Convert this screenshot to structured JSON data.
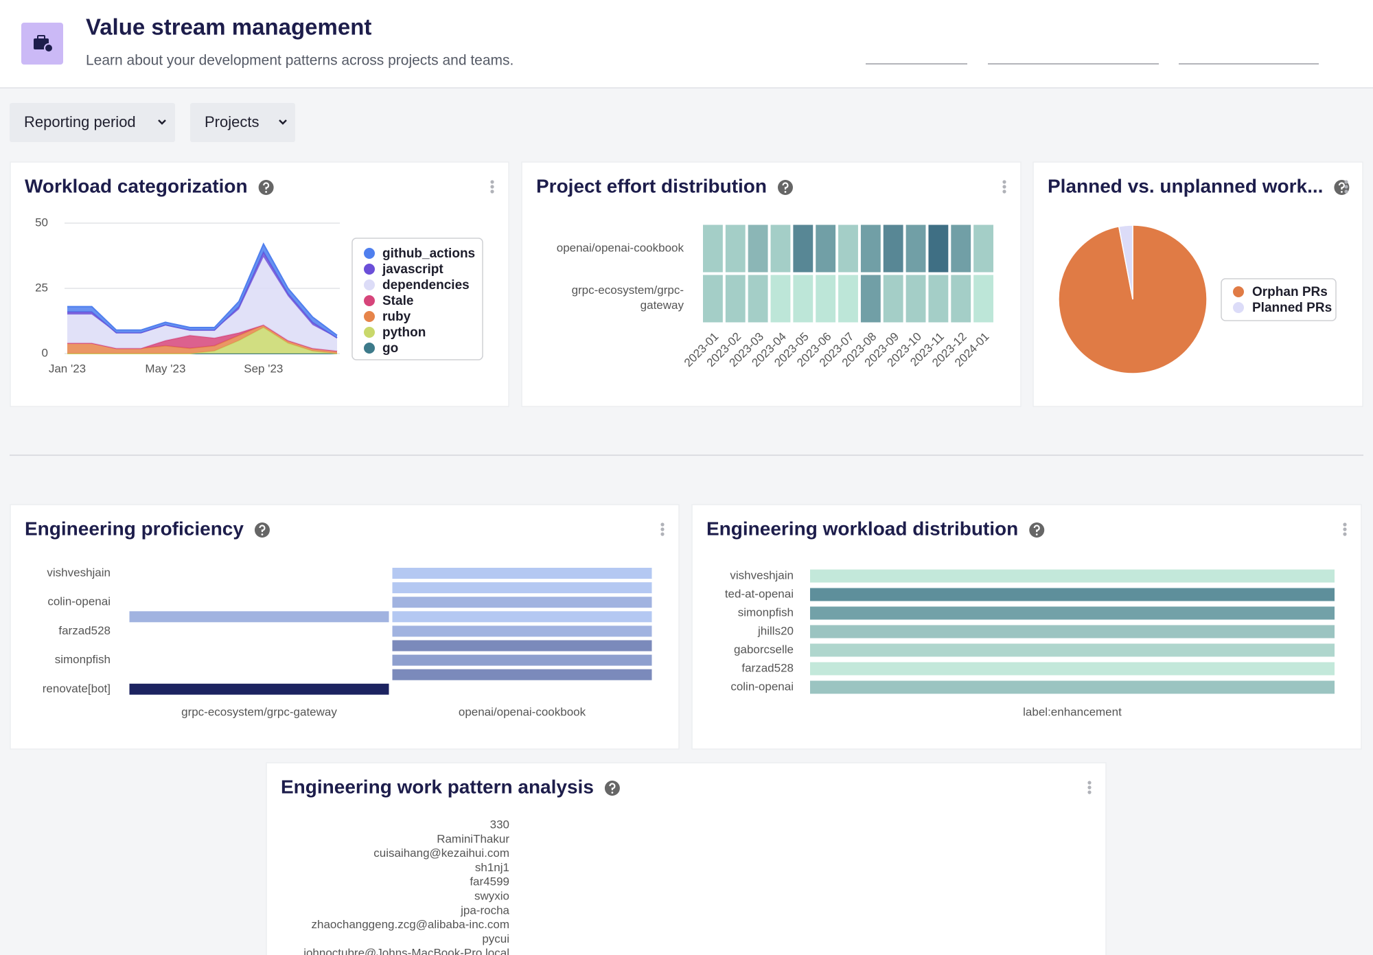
{
  "header": {
    "title": "Value stream management",
    "subtitle": "Learn about your development patterns across projects and teams."
  },
  "filters": [
    "Reporting period",
    "Projects"
  ],
  "panels": [
    {
      "title": "Workload categorization",
      "chart_data": {
        "type": "area",
        "stacked": true,
        "categories": [
          "Jan '23",
          null,
          null,
          null,
          "May '23",
          null,
          null,
          null,
          "Sep '23",
          null,
          null,
          null
        ],
        "series": [
          {
            "name": "github_actions",
            "color": "#4f7fee",
            "values": [
              2,
              2,
              1,
              1,
              1,
              1,
              1,
              2,
              3,
              2,
              2,
              1
            ]
          },
          {
            "name": "javascript",
            "color": "#6b4fd8",
            "values": [
              1,
              1,
              0,
              0,
              0,
              0,
              0,
              1,
              2,
              1,
              1,
              0
            ]
          },
          {
            "name": "dependencies",
            "color": "#dcdcf7",
            "values": [
              11,
              11,
              6,
              6,
              6,
              2,
              3,
              9,
              26,
              17,
              9,
              5
            ]
          },
          {
            "name": "Stale",
            "color": "#d6457a",
            "values": [
              0,
              0,
              0,
              0,
              2,
              5,
              3,
              1,
              0,
              0,
              0,
              0
            ]
          },
          {
            "name": "ruby",
            "color": "#e6844a",
            "values": [
              4,
              4,
              2,
              2,
              3,
              2,
              2,
              2,
              1,
              1,
              1,
              1
            ]
          },
          {
            "name": "python",
            "color": "#c9d86b",
            "values": [
              0,
              0,
              0,
              0,
              0,
              0,
              1,
              5,
              10,
              4,
              1,
              0
            ]
          },
          {
            "name": "go",
            "color": "#3d7a8a",
            "values": [
              0,
              0,
              0,
              0,
              0,
              0,
              0,
              0,
              0,
              0,
              0,
              0
            ]
          }
        ],
        "ylim": [
          0,
          50
        ],
        "yticks": [
          0,
          25,
          50
        ],
        "grid": true,
        "legend": "right"
      }
    },
    {
      "title": "Project effort distribution",
      "chart_data": {
        "type": "heatmap",
        "rows": [
          "openai/openai-cookbook",
          "grpc-ecosystem/grpc-gateway"
        ],
        "columns": [
          "2023-01",
          "2023-02",
          "2023-03",
          "2023-04",
          "2023-05",
          "2023-06",
          "2023-07",
          "2023-08",
          "2023-09",
          "2023-10",
          "2023-11",
          "2023-12",
          "2024-01"
        ],
        "values": [
          [
            2,
            2,
            3,
            2,
            5,
            4,
            2,
            4,
            5,
            4,
            6,
            4,
            2
          ],
          [
            2,
            2,
            2,
            1,
            1,
            1,
            1,
            4,
            2,
            2,
            2,
            2,
            1
          ]
        ],
        "color_range": [
          "#bde6d8",
          "#3f6f84"
        ]
      }
    },
    {
      "title": "Planned vs. unplanned work...",
      "chart_data": {
        "type": "pie",
        "categories": [
          "Orphan PRs",
          "Planned PRs"
        ],
        "values": [
          97,
          3
        ],
        "colors": [
          "#e07b45",
          "#dcdcf8"
        ],
        "legend": "right"
      }
    },
    {
      "title": "Engineering proficiency",
      "chart_data": {
        "type": "heatmap",
        "rows": [
          "vishveshjain",
          null,
          "colin-openai",
          null,
          "farzad528",
          null,
          "simonpfish",
          null,
          "renovate[bot]"
        ],
        "columns": [
          "grpc-ecosystem/grpc-gateway",
          "openai/openai-cookbook"
        ],
        "values": [
          [
            null,
            2
          ],
          [
            null,
            2
          ],
          [
            null,
            3
          ],
          [
            3,
            2
          ],
          [
            null,
            3
          ],
          [
            null,
            5
          ],
          [
            null,
            4
          ],
          [
            null,
            5
          ],
          [
            10,
            null
          ]
        ],
        "color_range": [
          "#b4c8f2",
          "#1c2360"
        ]
      }
    },
    {
      "title": "Engineering workload distribution",
      "chart_data": {
        "type": "heatmap",
        "rows": [
          "vishveshjain",
          "ted-at-openai",
          "simonpfish",
          "jhills20",
          "gaborcselle",
          "farzad528",
          "colin-openai"
        ],
        "columns": [
          "label:enhancement"
        ],
        "values": [
          [
            1
          ],
          [
            6
          ],
          [
            5
          ],
          [
            3
          ],
          [
            2
          ],
          [
            1
          ],
          [
            3
          ]
        ],
        "color_range": [
          "#c3e8da",
          "#5e8f9b"
        ]
      }
    },
    {
      "title": "Engineering work pattern analysis",
      "chart_data": {
        "type": "heatmap",
        "rows": [
          "330",
          "RaminiThakur",
          "cuisaihang@kezaihui.com",
          "sh1nj1",
          "far4599",
          "swyxio",
          "jpa-rocha",
          "zhaochanggeng.zcg@alibaba-inc.com",
          "pycui",
          "johnoctubre@Johns-MacBook-Pro.local"
        ]
      }
    }
  ]
}
